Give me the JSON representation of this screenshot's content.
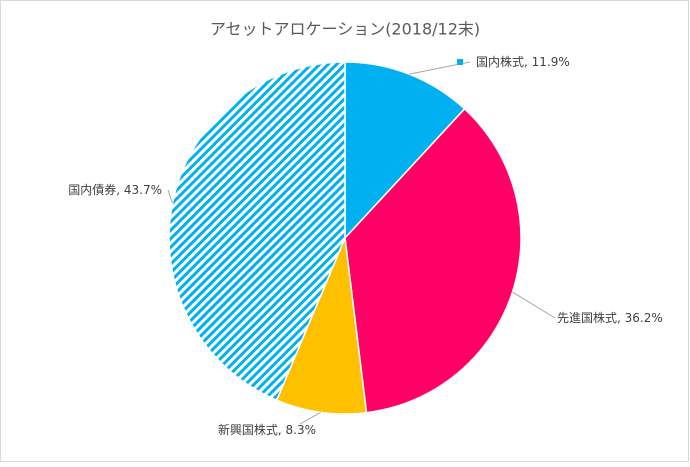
{
  "chart_data": {
    "type": "pie",
    "title": "アセットアロケーション(2018/12末)",
    "categories": [
      "国内株式",
      "先進国株式",
      "新興国株式",
      "国内債券"
    ],
    "values": [
      11.9,
      36.2,
      8.3,
      43.7
    ],
    "value_labels": [
      "11.9%",
      "36.2%",
      "8.3%",
      "43.7%"
    ],
    "label_separator": ", ",
    "colors": [
      "#00b0f0",
      "#ff0066",
      "#ffc000",
      "#00b0f0"
    ],
    "hatched": [
      false,
      false,
      false,
      true
    ]
  }
}
